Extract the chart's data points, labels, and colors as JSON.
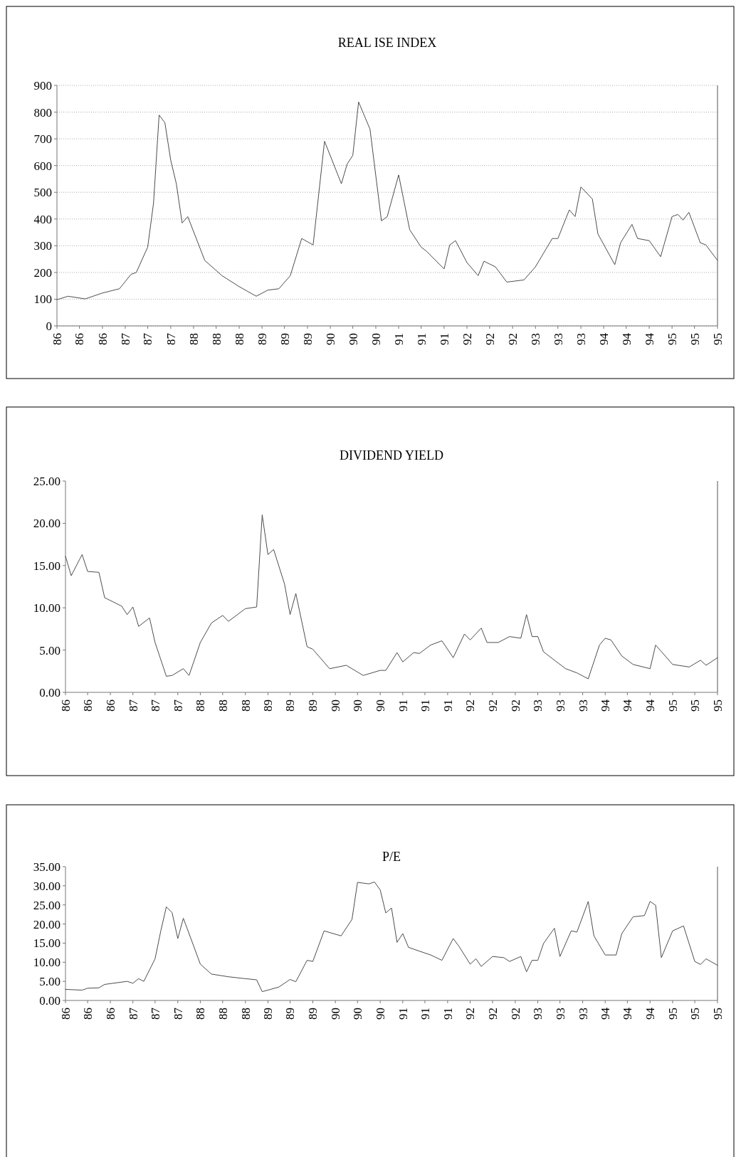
{
  "chart_data": [
    {
      "type": "line",
      "title": "REAL ISE INDEX",
      "xlim": [
        "1986-01",
        "1995-09"
      ],
      "ylim": [
        0,
        900
      ],
      "yticks": [
        0,
        100,
        200,
        300,
        400,
        500,
        600,
        700,
        800,
        900
      ],
      "grid": "y",
      "xticks": [
        {
          "value": "1986-01",
          "label": "86"
        },
        {
          "value": "1986-05",
          "label": "86"
        },
        {
          "value": "1986-09",
          "label": "86"
        },
        {
          "value": "1987-01",
          "label": "87"
        },
        {
          "value": "1987-05",
          "label": "87"
        },
        {
          "value": "1987-09",
          "label": "87"
        },
        {
          "value": "1988-01",
          "label": "88"
        },
        {
          "value": "1988-05",
          "label": "88"
        },
        {
          "value": "1988-09",
          "label": "88"
        },
        {
          "value": "1989-01",
          "label": "89"
        },
        {
          "value": "1989-05",
          "label": "89"
        },
        {
          "value": "1989-09",
          "label": "89"
        },
        {
          "value": "1990-01",
          "label": "90"
        },
        {
          "value": "1990-05",
          "label": "90"
        },
        {
          "value": "1990-09",
          "label": "90"
        },
        {
          "value": "1991-01",
          "label": "91"
        },
        {
          "value": "1991-05",
          "label": "91"
        },
        {
          "value": "1991-09",
          "label": "91"
        },
        {
          "value": "1992-01",
          "label": "92"
        },
        {
          "value": "1992-05",
          "label": "92"
        },
        {
          "value": "1992-09",
          "label": "92"
        },
        {
          "value": "1993-01",
          "label": "93"
        },
        {
          "value": "1993-05",
          "label": "93"
        },
        {
          "value": "1993-09",
          "label": "93"
        },
        {
          "value": "1994-01",
          "label": "94"
        },
        {
          "value": "1994-05",
          "label": "94"
        },
        {
          "value": "1994-09",
          "label": "94"
        },
        {
          "value": "1995-01",
          "label": "95"
        },
        {
          "value": "1995-05",
          "label": "95"
        },
        {
          "value": "1995-09",
          "label": "95"
        }
      ],
      "series": [
        {
          "color": "#4d4d4d",
          "x": [
            "1986-01",
            "1986-03",
            "1986-06",
            "1986-09",
            "1986-12",
            "1987-02",
            "1987-03",
            "1987-05",
            "1987-06",
            "1987-07",
            "1987-08",
            "1987-09",
            "1987-10",
            "1987-11",
            "1987-12",
            "1988-03",
            "1988-06",
            "1988-09",
            "1988-12",
            "1989-02",
            "1989-04",
            "1989-06",
            "1989-08",
            "1989-10",
            "1989-12",
            "1990-03",
            "1990-04",
            "1990-05",
            "1990-06",
            "1990-08",
            "1990-10",
            "1990-11",
            "1991-01",
            "1991-03",
            "1991-05",
            "1991-06",
            "1991-09",
            "1991-10",
            "1991-11",
            "1992-01",
            "1992-03",
            "1992-04",
            "1992-06",
            "1992-08",
            "1992-11",
            "1993-01",
            "1993-04",
            "1993-05",
            "1993-07",
            "1993-08",
            "1993-09",
            "1993-11",
            "1993-12",
            "1994-03",
            "1994-04",
            "1994-06",
            "1994-07",
            "1994-09",
            "1994-11",
            "1995-01",
            "1995-02",
            "1995-03",
            "1995-04",
            "1995-06",
            "1995-07",
            "1995-09"
          ],
          "values": [
            98,
            111,
            101,
            123,
            139,
            193,
            200,
            295,
            458,
            789,
            760,
            620,
            532,
            385,
            409,
            245,
            188,
            147,
            111,
            134,
            139,
            188,
            327,
            303,
            691,
            532,
            606,
            638,
            838,
            736,
            393,
            409,
            565,
            360,
            295,
            278,
            213,
            303,
            319,
            237,
            188,
            242,
            221,
            164,
            172,
            221,
            327,
            327,
            434,
            409,
            520,
            475,
            344,
            229,
            311,
            380,
            327,
            319,
            259,
            409,
            417,
            396,
            425,
            311,
            303,
            245
          ]
        }
      ]
    },
    {
      "type": "line",
      "title": "DIVIDEND YIELD",
      "xlim": [
        "1986-01",
        "1995-09"
      ],
      "ylim": [
        0,
        25
      ],
      "yticks": [
        {
          "value": 0,
          "label": "0.00"
        },
        {
          "value": 5,
          "label": "5.00"
        },
        {
          "value": 10,
          "label": "10.00"
        },
        {
          "value": 15,
          "label": "15.00"
        },
        {
          "value": 20,
          "label": "20.00"
        },
        {
          "value": 25,
          "label": "25.00"
        }
      ],
      "xticks": [
        {
          "value": "1986-01",
          "label": "86"
        },
        {
          "value": "1986-05",
          "label": "86"
        },
        {
          "value": "1986-09",
          "label": "86"
        },
        {
          "value": "1987-01",
          "label": "87"
        },
        {
          "value": "1987-05",
          "label": "87"
        },
        {
          "value": "1987-09",
          "label": "87"
        },
        {
          "value": "1988-01",
          "label": "88"
        },
        {
          "value": "1988-05",
          "label": "88"
        },
        {
          "value": "1988-09",
          "label": "88"
        },
        {
          "value": "1989-01",
          "label": "89"
        },
        {
          "value": "1989-05",
          "label": "89"
        },
        {
          "value": "1989-09",
          "label": "89"
        },
        {
          "value": "1990-01",
          "label": "90"
        },
        {
          "value": "1990-05",
          "label": "90"
        },
        {
          "value": "1990-09",
          "label": "90"
        },
        {
          "value": "1991-01",
          "label": "91"
        },
        {
          "value": "1991-05",
          "label": "91"
        },
        {
          "value": "1991-09",
          "label": "91"
        },
        {
          "value": "1992-01",
          "label": "92"
        },
        {
          "value": "1992-05",
          "label": "92"
        },
        {
          "value": "1992-09",
          "label": "92"
        },
        {
          "value": "1993-01",
          "label": "93"
        },
        {
          "value": "1993-05",
          "label": "93"
        },
        {
          "value": "1993-09",
          "label": "93"
        },
        {
          "value": "1994-01",
          "label": "94"
        },
        {
          "value": "1994-05",
          "label": "94"
        },
        {
          "value": "1994-09",
          "label": "94"
        },
        {
          "value": "1995-01",
          "label": "95"
        },
        {
          "value": "1995-05",
          "label": "95"
        },
        {
          "value": "1995-09",
          "label": "95"
        }
      ],
      "series": [
        {
          "color": "#4d4d4d",
          "x": [
            "1986-01",
            "1986-02",
            "1986-04",
            "1986-05",
            "1986-07",
            "1986-08",
            "1986-11",
            "1986-12",
            "1987-01",
            "1987-02",
            "1987-04",
            "1987-05",
            "1987-07",
            "1987-08",
            "1987-10",
            "1987-11",
            "1988-01",
            "1988-03",
            "1988-05",
            "1988-06",
            "1988-09",
            "1988-11",
            "1988-12",
            "1989-01",
            "1989-02",
            "1989-04",
            "1989-05",
            "1989-06",
            "1989-08",
            "1989-09",
            "1989-12",
            "1990-03",
            "1990-06",
            "1990-09",
            "1990-10",
            "1990-12",
            "1991-01",
            "1991-03",
            "1991-04",
            "1991-06",
            "1991-08",
            "1991-10",
            "1991-12",
            "1992-01",
            "1992-03",
            "1992-04",
            "1992-06",
            "1992-08",
            "1992-10",
            "1992-11",
            "1992-12",
            "1993-01",
            "1993-02",
            "1993-04",
            "1993-06",
            "1993-08",
            "1993-10",
            "1993-12",
            "1994-01",
            "1994-02",
            "1994-04",
            "1994-06",
            "1994-09",
            "1994-10",
            "1995-01",
            "1995-04",
            "1995-06",
            "1995-07",
            "1995-09"
          ],
          "values": [
            16.1,
            13.8,
            16.3,
            14.3,
            14.2,
            11.2,
            10.2,
            9.2,
            10.1,
            7.8,
            8.8,
            5.9,
            1.9,
            2.0,
            2.8,
            2.0,
            5.9,
            8.2,
            9.1,
            8.4,
            9.9,
            10.1,
            21.0,
            16.3,
            16.9,
            12.8,
            9.2,
            11.7,
            5.4,
            5.1,
            2.8,
            3.2,
            2.0,
            2.6,
            2.6,
            4.7,
            3.6,
            4.7,
            4.6,
            5.6,
            6.1,
            4.1,
            6.9,
            6.2,
            7.6,
            5.9,
            5.9,
            6.6,
            6.4,
            9.2,
            6.6,
            6.6,
            4.8,
            3.8,
            2.8,
            2.3,
            1.6,
            5.6,
            6.4,
            6.2,
            4.3,
            3.3,
            2.8,
            5.6,
            3.3,
            3.0,
            3.8,
            3.2,
            4.1
          ]
        }
      ]
    },
    {
      "type": "line",
      "title": "P/E",
      "xlim": [
        "1986-01",
        "1995-09"
      ],
      "ylim": [
        0,
        35
      ],
      "yticks": [
        {
          "value": 0,
          "label": "0.00"
        },
        {
          "value": 5,
          "label": "5.00"
        },
        {
          "value": 10,
          "label": "10.00"
        },
        {
          "value": 15,
          "label": "15.00"
        },
        {
          "value": 20,
          "label": "20.00"
        },
        {
          "value": 25,
          "label": "25.00"
        },
        {
          "value": 30,
          "label": "30.00"
        },
        {
          "value": 35,
          "label": "35.00"
        }
      ],
      "xticks": [
        {
          "value": "1986-01",
          "label": "86"
        },
        {
          "value": "1986-05",
          "label": "86"
        },
        {
          "value": "1986-09",
          "label": "86"
        },
        {
          "value": "1987-01",
          "label": "87"
        },
        {
          "value": "1987-05",
          "label": "87"
        },
        {
          "value": "1987-09",
          "label": "87"
        },
        {
          "value": "1988-01",
          "label": "88"
        },
        {
          "value": "1988-05",
          "label": "88"
        },
        {
          "value": "1988-09",
          "label": "88"
        },
        {
          "value": "1989-01",
          "label": "89"
        },
        {
          "value": "1989-05",
          "label": "89"
        },
        {
          "value": "1989-09",
          "label": "89"
        },
        {
          "value": "1990-01",
          "label": "90"
        },
        {
          "value": "1990-05",
          "label": "90"
        },
        {
          "value": "1990-09",
          "label": "90"
        },
        {
          "value": "1991-01",
          "label": "91"
        },
        {
          "value": "1991-05",
          "label": "91"
        },
        {
          "value": "1991-09",
          "label": "91"
        },
        {
          "value": "1992-01",
          "label": "92"
        },
        {
          "value": "1992-05",
          "label": "92"
        },
        {
          "value": "1992-09",
          "label": "92"
        },
        {
          "value": "1993-01",
          "label": "93"
        },
        {
          "value": "1993-05",
          "label": "93"
        },
        {
          "value": "1993-09",
          "label": "93"
        },
        {
          "value": "1994-01",
          "label": "94"
        },
        {
          "value": "1994-05",
          "label": "94"
        },
        {
          "value": "1994-09",
          "label": "94"
        },
        {
          "value": "1995-01",
          "label": "95"
        },
        {
          "value": "1995-05",
          "label": "95"
        },
        {
          "value": "1995-09",
          "label": "95"
        }
      ],
      "series": [
        {
          "color": "#4d4d4d",
          "x": [
            "1986-01",
            "1986-04",
            "1986-05",
            "1986-07",
            "1986-08",
            "1986-12",
            "1987-01",
            "1987-02",
            "1987-03",
            "1987-05",
            "1987-06",
            "1987-07",
            "1987-08",
            "1987-09",
            "1987-10",
            "1987-11",
            "1988-01",
            "1988-03",
            "1988-06",
            "1988-09",
            "1988-11",
            "1988-12",
            "1989-03",
            "1989-05",
            "1989-06",
            "1989-08",
            "1989-09",
            "1989-11",
            "1990-02",
            "1990-04",
            "1990-05",
            "1990-07",
            "1990-08",
            "1990-09",
            "1990-10",
            "1990-11",
            "1990-12",
            "1991-01",
            "1991-02",
            "1991-04",
            "1991-06",
            "1991-08",
            "1991-10",
            "1991-11",
            "1992-01",
            "1992-02",
            "1992-03",
            "1992-05",
            "1992-07",
            "1992-08",
            "1992-10",
            "1992-11",
            "1992-12",
            "1993-01",
            "1993-02",
            "1993-04",
            "1993-05",
            "1993-07",
            "1993-08",
            "1993-10",
            "1993-11",
            "1994-01",
            "1994-03",
            "1994-04",
            "1994-06",
            "1994-08",
            "1994-09",
            "1994-10",
            "1994-11",
            "1995-01",
            "1995-03",
            "1995-05",
            "1995-06",
            "1995-07",
            "1995-09"
          ],
          "values": [
            2.9,
            2.7,
            3.2,
            3.3,
            4.2,
            5.0,
            4.5,
            5.7,
            5.0,
            10.9,
            18.2,
            24.5,
            23.0,
            16.2,
            21.5,
            17.5,
            9.5,
            6.9,
            6.2,
            5.7,
            5.4,
            2.3,
            3.5,
            5.5,
            4.9,
            10.5,
            10.2,
            18.2,
            16.9,
            21.2,
            30.9,
            30.5,
            31.0,
            28.9,
            22.9,
            24.2,
            15.2,
            17.5,
            13.9,
            12.9,
            11.9,
            10.5,
            16.2,
            14.2,
            9.5,
            10.9,
            8.9,
            11.5,
            11.2,
            10.2,
            11.5,
            7.5,
            10.5,
            10.5,
            14.9,
            18.9,
            11.5,
            18.2,
            17.9,
            25.9,
            16.9,
            11.9,
            11.9,
            17.5,
            21.9,
            22.2,
            25.9,
            24.9,
            11.2,
            18.2,
            19.5,
            10.2,
            9.4,
            10.9,
            9.2
          ]
        }
      ]
    }
  ]
}
